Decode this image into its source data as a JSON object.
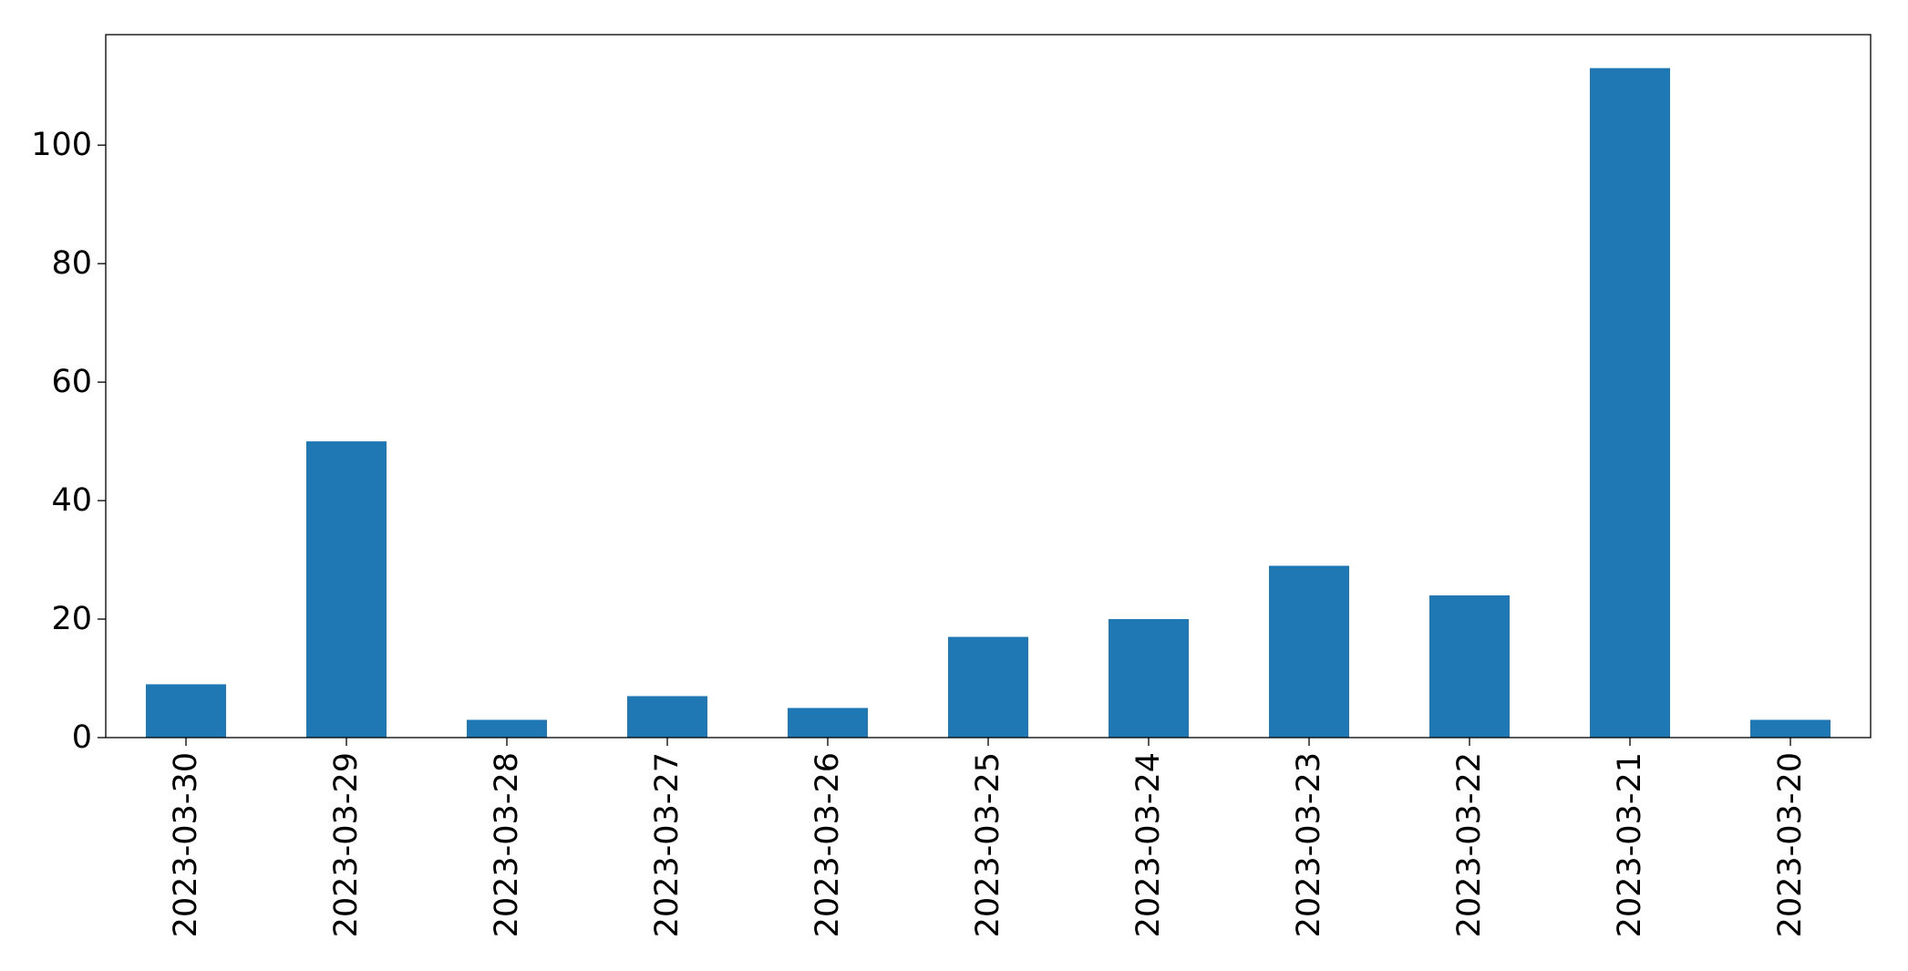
{
  "chart_data": {
    "type": "bar",
    "title": "",
    "xlabel": "",
    "ylabel": "",
    "categories": [
      "2023-03-30",
      "2023-03-29",
      "2023-03-28",
      "2023-03-27",
      "2023-03-26",
      "2023-03-25",
      "2023-03-24",
      "2023-03-23",
      "2023-03-22",
      "2023-03-21",
      "2023-03-20"
    ],
    "values": [
      9,
      50,
      3,
      7,
      5,
      17,
      20,
      29,
      24,
      113,
      3
    ],
    "ylim": [
      0,
      118.65
    ],
    "yticks": [
      0,
      20,
      40,
      60,
      80,
      100
    ],
    "bar_color": "#1f77b4",
    "grid": false,
    "legend": "none"
  }
}
